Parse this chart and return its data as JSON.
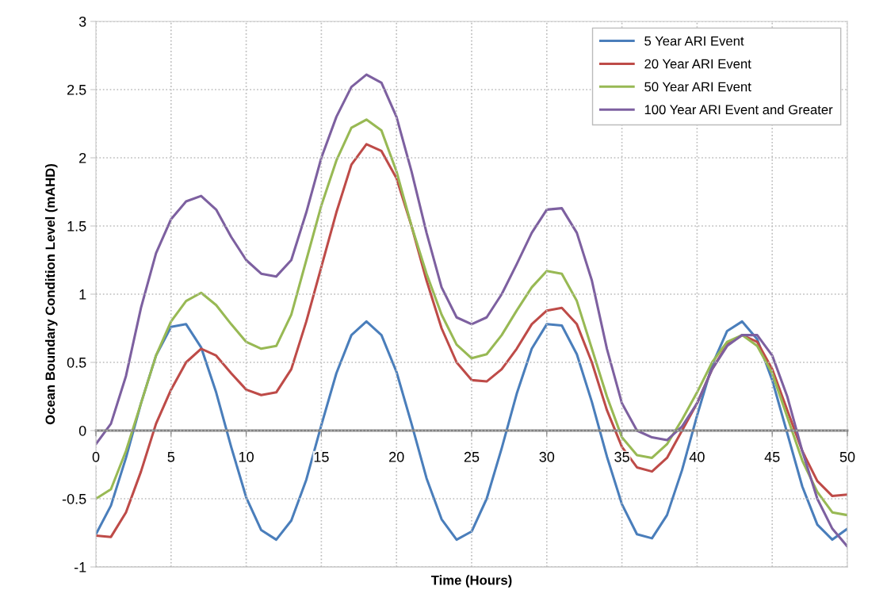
{
  "chart_data": {
    "type": "line",
    "xlabel": "Time (Hours)",
    "ylabel": "Ocean Boundary Condition Level (mAHD)",
    "x": [
      0,
      1,
      2,
      3,
      4,
      5,
      6,
      7,
      8,
      9,
      10,
      11,
      12,
      13,
      14,
      15,
      16,
      17,
      18,
      19,
      20,
      21,
      22,
      23,
      24,
      25,
      26,
      27,
      28,
      29,
      30,
      31,
      32,
      33,
      34,
      35,
      36,
      37,
      38,
      39,
      40,
      41,
      42,
      43,
      44,
      45,
      46,
      47,
      48,
      49,
      50
    ],
    "series": [
      {
        "name": "5 Year ARI Event",
        "color": "#4a7ebb",
        "values": [
          -0.76,
          -0.55,
          -0.2,
          0.2,
          0.55,
          0.76,
          0.78,
          0.61,
          0.28,
          -0.12,
          -0.49,
          -0.73,
          -0.8,
          -0.66,
          -0.36,
          0.04,
          0.42,
          0.7,
          0.8,
          0.7,
          0.43,
          0.05,
          -0.35,
          -0.65,
          -0.8,
          -0.74,
          -0.5,
          -0.13,
          0.27,
          0.6,
          0.78,
          0.77,
          0.56,
          0.21,
          -0.19,
          -0.54,
          -0.76,
          -0.79,
          -0.62,
          -0.29,
          0.11,
          0.48,
          0.73,
          0.8,
          0.67,
          0.37,
          -0.02,
          -0.41,
          -0.69,
          -0.8,
          -0.72
        ]
      },
      {
        "name": "20 Year ARI Event",
        "color": "#be4b48",
        "values": [
          -0.77,
          -0.78,
          -0.6,
          -0.3,
          0.05,
          0.3,
          0.5,
          0.6,
          0.55,
          0.42,
          0.3,
          0.26,
          0.28,
          0.45,
          0.8,
          1.2,
          1.6,
          1.95,
          2.1,
          2.05,
          1.85,
          1.5,
          1.1,
          0.75,
          0.5,
          0.37,
          0.36,
          0.45,
          0.6,
          0.78,
          0.88,
          0.9,
          0.78,
          0.5,
          0.15,
          -0.12,
          -0.27,
          -0.3,
          -0.2,
          0.0,
          0.2,
          0.45,
          0.63,
          0.7,
          0.65,
          0.45,
          0.15,
          -0.15,
          -0.37,
          -0.48,
          -0.47
        ]
      },
      {
        "name": "50 Year ARI Event",
        "color": "#98b954",
        "values": [
          -0.5,
          -0.43,
          -0.15,
          0.2,
          0.55,
          0.8,
          0.95,
          1.01,
          0.92,
          0.78,
          0.65,
          0.6,
          0.62,
          0.85,
          1.25,
          1.65,
          1.98,
          2.22,
          2.28,
          2.2,
          1.9,
          1.5,
          1.15,
          0.85,
          0.63,
          0.53,
          0.56,
          0.7,
          0.88,
          1.05,
          1.17,
          1.15,
          0.95,
          0.6,
          0.25,
          -0.05,
          -0.18,
          -0.2,
          -0.1,
          0.08,
          0.28,
          0.5,
          0.65,
          0.7,
          0.62,
          0.42,
          0.1,
          -0.22,
          -0.45,
          -0.6,
          -0.62
        ]
      },
      {
        "name": "100 Year ARI Event and Greater",
        "color": "#7d60a0",
        "values": [
          -0.1,
          0.05,
          0.4,
          0.9,
          1.3,
          1.55,
          1.68,
          1.72,
          1.62,
          1.42,
          1.25,
          1.15,
          1.13,
          1.25,
          1.6,
          2.0,
          2.3,
          2.52,
          2.61,
          2.55,
          2.3,
          1.9,
          1.45,
          1.05,
          0.83,
          0.78,
          0.83,
          1.0,
          1.22,
          1.45,
          1.62,
          1.63,
          1.45,
          1.1,
          0.6,
          0.2,
          0.0,
          -0.05,
          -0.07,
          0.03,
          0.2,
          0.45,
          0.62,
          0.7,
          0.7,
          0.55,
          0.25,
          -0.15,
          -0.5,
          -0.72,
          -0.85
        ]
      }
    ],
    "xlim": [
      0,
      50
    ],
    "xticks": [
      0,
      5,
      10,
      15,
      20,
      25,
      30,
      35,
      40,
      45,
      50
    ],
    "ylim": [
      -1,
      3
    ],
    "yticks": [
      -1,
      -0.5,
      0,
      0.5,
      1,
      1.5,
      2,
      2.5,
      3
    ],
    "grid": true,
    "legend": "top right",
    "line_style": "solid",
    "marker": "none"
  }
}
